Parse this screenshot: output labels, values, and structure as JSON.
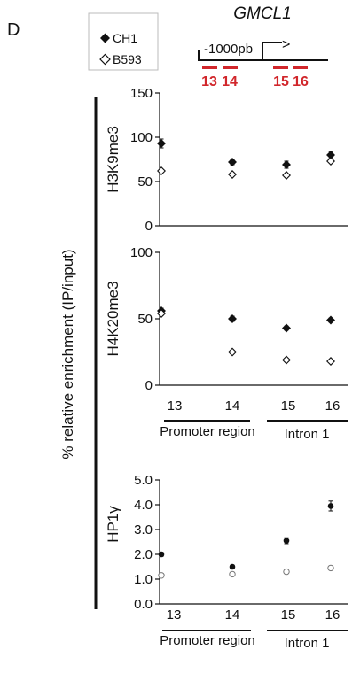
{
  "panel_label": "D",
  "gene": {
    "name": "GMCL1",
    "position_label": "-1000pb",
    "arrow_label": ">",
    "amplicons": [
      "13",
      "14",
      "15",
      "16"
    ]
  },
  "legend": [
    {
      "name": "CH1",
      "marker": "filled-diamond"
    },
    {
      "name": "B593",
      "marker": "open-diamond"
    }
  ],
  "shared_ylabel": "% relative enrichment (IP/input)",
  "groups": [
    "Promoter region",
    "Intron 1"
  ],
  "colors": {
    "annotation_red": "#d1262b",
    "marker": "#111111"
  },
  "chart_data": [
    {
      "type": "scatter",
      "panel": "H3K9me3",
      "ylabel": "H3K9me3",
      "categories": [
        "13",
        "14",
        "15",
        "16"
      ],
      "ylim": [
        0,
        150
      ],
      "yticks": [
        "0",
        "50",
        "100",
        "150"
      ],
      "series": [
        {
          "name": "CH1",
          "values": [
            93,
            72,
            69,
            80
          ],
          "errors": [
            5,
            3,
            4,
            4
          ]
        },
        {
          "name": "B593",
          "values": [
            62,
            58,
            57,
            73
          ],
          "errors": [
            2,
            2,
            2,
            2
          ]
        }
      ]
    },
    {
      "type": "scatter",
      "panel": "H4K20me3",
      "ylabel": "H4K20me3",
      "categories": [
        "13",
        "14",
        "15",
        "16"
      ],
      "ylim": [
        0,
        100
      ],
      "yticks": [
        "0",
        "50",
        "100"
      ],
      "series": [
        {
          "name": "CH1",
          "values": [
            56,
            50,
            43,
            49
          ],
          "errors": [
            2,
            2,
            1.5,
            1.5
          ]
        },
        {
          "name": "B593",
          "values": [
            54,
            25,
            19,
            18
          ],
          "errors": [
            1.5,
            1,
            1,
            1
          ]
        }
      ]
    },
    {
      "type": "scatter",
      "panel": "HP1γ",
      "ylabel": "HP1γ",
      "categories": [
        "13",
        "14",
        "15",
        "16"
      ],
      "ylim": [
        0,
        5
      ],
      "yticks": [
        "0.0",
        "1.0",
        "2.0",
        "3.0",
        "4.0",
        "5.0"
      ],
      "series": [
        {
          "name": "CH1",
          "values": [
            2.0,
            1.5,
            2.55,
            3.95
          ],
          "errors": [
            0.08,
            0.06,
            0.12,
            0.2
          ]
        },
        {
          "name": "B593",
          "values": [
            1.15,
            1.2,
            1.3,
            1.45
          ],
          "errors": [
            0.03,
            0.03,
            0.03,
            0.03
          ]
        }
      ]
    }
  ]
}
